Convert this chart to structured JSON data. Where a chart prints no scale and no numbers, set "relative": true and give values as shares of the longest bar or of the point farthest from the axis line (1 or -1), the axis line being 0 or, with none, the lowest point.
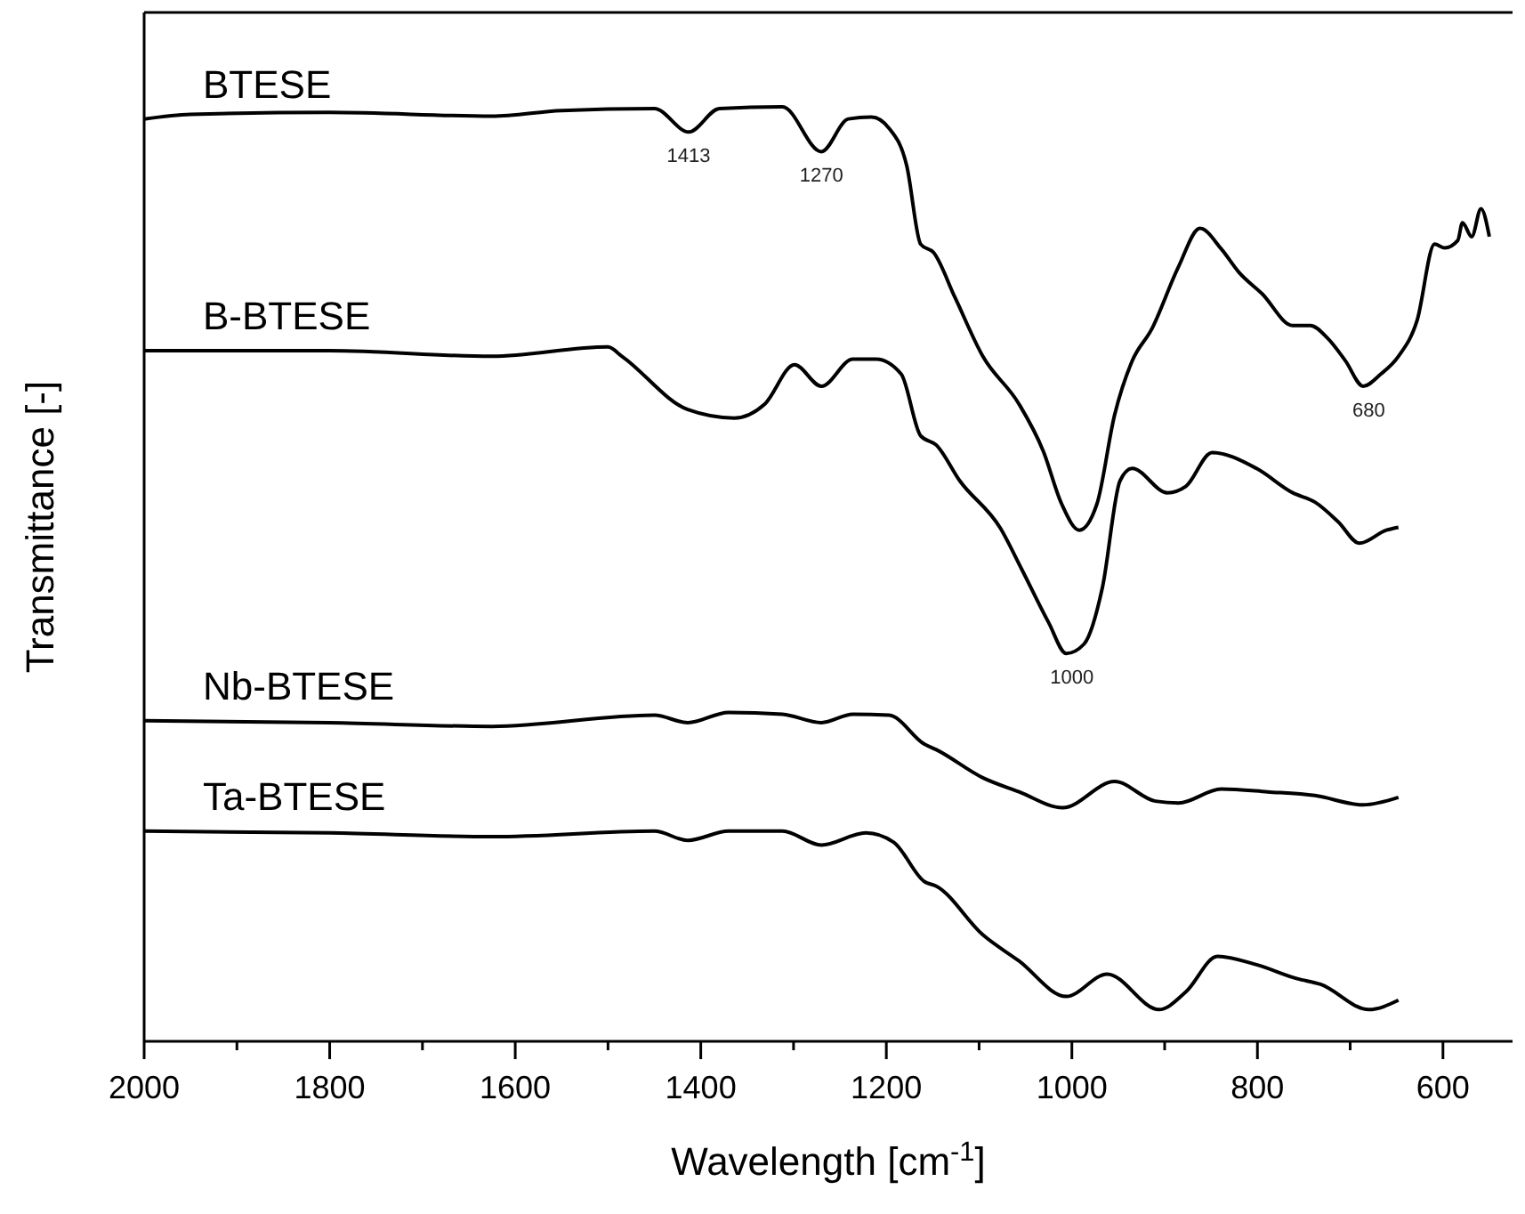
{
  "chart_data": {
    "type": "line",
    "relative": true,
    "xlabel": "Wavelength [cm$^{-1}$]",
    "ylabel": "Transmittance [-]",
    "xlim": [
      2000,
      525
    ],
    "xticks": [
      2000,
      1800,
      1600,
      1400,
      1200,
      1000,
      800,
      600
    ],
    "grid": false,
    "series": [
      {
        "name": "BTESE",
        "color": "#000000",
        "x": [
          2000,
          1950,
          1800,
          1625,
          1550,
          1450,
          1413,
          1380,
          1312,
          1270,
          1241,
          1216,
          1197,
          1178,
          1163,
          1149,
          1126,
          1096,
          1057,
          1031,
          1011,
          992,
          973,
          954,
          935,
          914,
          885,
          862,
          839,
          820,
          795,
          762,
          743,
          724,
          705,
          686,
          667,
          648,
          628,
          609,
          598,
          584,
          579,
          569,
          559,
          550
        ],
        "values": [
          0.987,
          0.992,
          0.994,
          0.99,
          0.996,
          0.998,
          0.973,
          0.998,
          1,
          0.952,
          0.987,
          0.989,
          0.977,
          0.937,
          0.853,
          0.844,
          0.796,
          0.733,
          0.682,
          0.632,
          0.575,
          0.547,
          0.575,
          0.67,
          0.728,
          0.762,
          0.829,
          0.87,
          0.848,
          0.823,
          0.8,
          0.766,
          0.766,
          0.752,
          0.728,
          0.701,
          0.714,
          0.733,
          0.771,
          0.853,
          0.849,
          0.857,
          0.876,
          0.861,
          0.891,
          0.861
        ]
      },
      {
        "name": "B-BTESE",
        "color": "#000000",
        "x": [
          2000,
          1800,
          1625,
          1500,
          1485,
          1414,
          1364,
          1331,
          1299,
          1270,
          1236,
          1211,
          1184,
          1163,
          1146,
          1121,
          1077,
          1054,
          1025,
          1006,
          987,
          967,
          948,
          935,
          897,
          877,
          849,
          801,
          762,
          738,
          713,
          690,
          661,
          648
        ],
        "values": [
          0.739,
          0.739,
          0.733,
          0.743,
          0.733,
          0.676,
          0.667,
          0.682,
          0.724,
          0.701,
          0.73,
          0.73,
          0.714,
          0.648,
          0.638,
          0.6,
          0.549,
          0.505,
          0.448,
          0.415,
          0.425,
          0.486,
          0.6,
          0.613,
          0.587,
          0.594,
          0.63,
          0.613,
          0.587,
          0.577,
          0.556,
          0.533,
          0.547,
          0.55
        ]
      },
      {
        "name": "Nb-BTESE",
        "color": "#000000",
        "x": [
          2000,
          1800,
          1625,
          1450,
          1414,
          1370,
          1312,
          1270,
          1236,
          1197,
          1159,
          1146,
          1096,
          1057,
          1010,
          954,
          910,
          885,
          839,
          789,
          738,
          686,
          648
        ],
        "values": [
          0.343,
          0.341,
          0.337,
          0.349,
          0.341,
          0.352,
          0.35,
          0.341,
          0.35,
          0.349,
          0.318,
          0.312,
          0.282,
          0.267,
          0.25,
          0.278,
          0.257,
          0.255,
          0.27,
          0.267,
          0.263,
          0.253,
          0.261
        ]
      },
      {
        "name": "Ta-BTESE",
        "color": "#000000",
        "x": [
          2000,
          1800,
          1625,
          1450,
          1414,
          1370,
          1312,
          1270,
          1222,
          1192,
          1159,
          1146,
          1096,
          1057,
          1006,
          962,
          906,
          877,
          843,
          801,
          757,
          732,
          680,
          648
        ],
        "values": [
          0.225,
          0.223,
          0.219,
          0.225,
          0.215,
          0.225,
          0.225,
          0.21,
          0.223,
          0.213,
          0.171,
          0.166,
          0.114,
          0.086,
          0.048,
          0.072,
          0.034,
          0.053,
          0.091,
          0.082,
          0.067,
          0.061,
          0.034,
          0.044
        ]
      }
    ],
    "annotations": [
      {
        "text": "1413",
        "x": 1413,
        "y": 0.973
      },
      {
        "text": "1270",
        "x": 1270,
        "y": 0.952
      },
      {
        "text": "1000",
        "x": 1000,
        "y": 0.415
      },
      {
        "text": "680",
        "x": 680,
        "y": 0.701
      }
    ]
  }
}
